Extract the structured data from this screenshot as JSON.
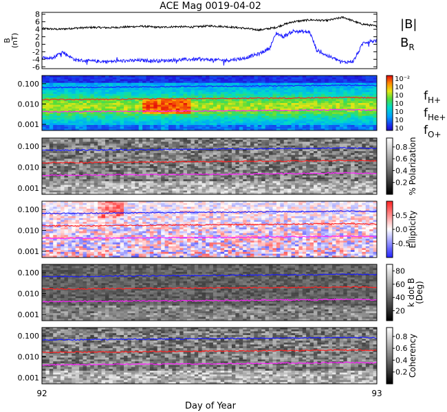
{
  "title": "ACE Mag 0019-04-02",
  "xaxis": {
    "label": "Day of Year",
    "ticks": [
      "92",
      "93"
    ],
    "range": [
      92,
      93
    ]
  },
  "colors": {
    "bmag": "#000000",
    "br": "#1a1aff",
    "fh": "#1a1aff",
    "fhe": "#ff2020",
    "fo": "#ff20ff"
  },
  "chart_data": [
    {
      "type": "line",
      "panel": "magnetic-field",
      "ylabel": "B (nT)",
      "ylabel_lines": [
        "B",
        "(nT)"
      ],
      "ylim": [
        -6.5,
        8.5
      ],
      "yticks": [
        "8",
        "6",
        "4",
        "2",
        "0",
        "-2",
        "-4",
        "-6"
      ],
      "ytick_values": [
        8,
        6,
        4,
        2,
        0,
        -2,
        -4,
        -6
      ],
      "series": [
        {
          "name": "|B|",
          "color": "#000000",
          "x": [
            92.0,
            92.05,
            92.1,
            92.15,
            92.2,
            92.25,
            92.3,
            92.35,
            92.4,
            92.45,
            92.5,
            92.55,
            92.6,
            92.65,
            92.7,
            92.72,
            92.75,
            92.8,
            92.85,
            92.9,
            92.95,
            93.0
          ],
          "y": [
            4.2,
            4.0,
            4.3,
            4.5,
            4.4,
            4.6,
            4.8,
            4.5,
            4.7,
            4.6,
            4.9,
            4.7,
            4.3,
            3.8,
            4.5,
            5.2,
            6.0,
            6.5,
            6.3,
            7.2,
            5.5,
            4.8
          ]
        },
        {
          "name": "B_R",
          "label_main": "B",
          "label_sub": "R",
          "color": "#1a1aff",
          "x": [
            92.0,
            92.03,
            92.06,
            92.1,
            92.15,
            92.2,
            92.25,
            92.3,
            92.35,
            92.4,
            92.45,
            92.5,
            92.55,
            92.6,
            92.65,
            92.68,
            92.7,
            92.72,
            92.75,
            92.8,
            92.82,
            92.85,
            92.9,
            92.93,
            92.96,
            93.0
          ],
          "y": [
            -3.5,
            -3.8,
            -2.0,
            -4.2,
            -4.5,
            -4.6,
            -4.4,
            -4.3,
            -4.4,
            -4.2,
            -4.0,
            -4.1,
            -4.3,
            -3.8,
            -2.5,
            -1.0,
            3.0,
            2.0,
            3.5,
            3.2,
            -1.5,
            -3.0,
            -4.8,
            -4.5,
            0.5,
            1.0
          ]
        }
      ]
    },
    {
      "type": "heatmap",
      "panel": "power-spectrum",
      "ylim_log": [
        -3.3,
        -0.6
      ],
      "yticks": [
        "0.100",
        "0.010",
        "0.001"
      ],
      "ytick_values": [
        0.1,
        0.01,
        0.001
      ],
      "colorbar": {
        "ticks": [
          "10⁻²",
          "10",
          "10",
          "10",
          "10",
          "10",
          "10"
        ],
        "tick_exponents": [
          "-2",
          "",
          "",
          "",
          "",
          "",
          ""
        ],
        "palette": "rainbow"
      },
      "lines": [
        {
          "name": "f_H+",
          "label_main": "f",
          "label_sub": "H+",
          "color": "#1a1aff",
          "y": [
            0.065,
            0.066,
            0.068,
            0.07,
            0.072,
            0.074,
            0.075,
            0.078,
            0.08,
            0.085,
            0.08
          ]
        },
        {
          "name": "f_He+",
          "label_main": "f",
          "label_sub": "He+",
          "color": "#ff2020",
          "y": [
            0.0165,
            0.0166,
            0.017,
            0.0175,
            0.018,
            0.0185,
            0.019,
            0.0195,
            0.02,
            0.021,
            0.02
          ]
        },
        {
          "name": "f_O+",
          "label_main": "f",
          "label_sub": "O+",
          "color": "#ff20ff",
          "y": [
            0.0041,
            0.0042,
            0.0043,
            0.0044,
            0.0045,
            0.0046,
            0.0047,
            0.0049,
            0.005,
            0.0053,
            0.005
          ]
        }
      ]
    },
    {
      "type": "heatmap",
      "panel": "polarization",
      "ylim_log": [
        -3.3,
        -0.6
      ],
      "yticks": [
        "0.100",
        "0.010",
        "0.001"
      ],
      "ytick_values": [
        0.1,
        0.01,
        0.001
      ],
      "colorbar": {
        "label": "% Polarization",
        "ticks": [
          "0.8",
          "0.6",
          "0.4",
          "0.2"
        ],
        "tick_values": [
          0.8,
          0.6,
          0.4,
          0.2
        ],
        "range": [
          0,
          0.95
        ],
        "palette": "gray"
      }
    },
    {
      "type": "heatmap",
      "panel": "ellipticity",
      "ylim_log": [
        -3.3,
        -0.6
      ],
      "yticks": [
        "0.100",
        "0.010",
        "0.001"
      ],
      "ytick_values": [
        0.1,
        0.01,
        0.001
      ],
      "colorbar": {
        "label": "Ellipticity",
        "ticks": [
          "0.5",
          "0.0",
          "-0.5"
        ],
        "tick_values": [
          0.5,
          0.0,
          -0.5
        ],
        "range": [
          -1,
          1
        ],
        "palette": "bwr"
      }
    },
    {
      "type": "heatmap",
      "panel": "k-dot-b",
      "ylim_log": [
        -3.3,
        -0.6
      ],
      "yticks": [
        "0.100",
        "0.010",
        "0.001"
      ],
      "ytick_values": [
        0.1,
        0.01,
        0.001
      ],
      "colorbar": {
        "label": "k dot B",
        "label2": "(Deg)",
        "ticks": [
          "80",
          "60",
          "40",
          "20"
        ],
        "tick_values": [
          80,
          60,
          40,
          20
        ],
        "range": [
          5,
          90
        ],
        "palette": "gray"
      }
    },
    {
      "type": "heatmap",
      "panel": "coherency",
      "ylim_log": [
        -3.3,
        -0.6
      ],
      "yticks": [
        "0.100",
        "0.010",
        "0.001"
      ],
      "ytick_values": [
        0.1,
        0.01,
        0.001
      ],
      "colorbar": {
        "label": "Coherency",
        "ticks": [
          "0.8",
          "0.6",
          "0.4",
          "0.2"
        ],
        "tick_values": [
          0.8,
          0.6,
          0.4,
          0.2
        ],
        "range": [
          0,
          0.95
        ],
        "palette": "gray"
      }
    }
  ]
}
